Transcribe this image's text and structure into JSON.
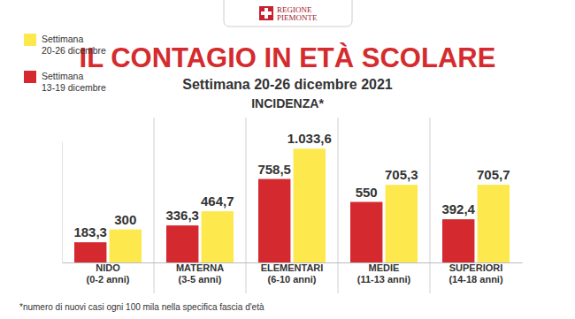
{
  "chart_data": {
    "type": "bar",
    "title": "IL CONTAGIO IN ETÀ SCOLARE",
    "subtitle": "Settimana 20-26 dicembre 2021",
    "annotations": [
      "REGIONE\nPIEMONTE",
      "INCIDENZA*",
      "*numero di nuovi casi ogni 100 mila nella specifica fascia d'età"
    ],
    "categories": [
      "NIDO\n(0-2 anni)",
      "MATERNA\n(3-5 anni)",
      "ELEMENTARI\n(6-10 anni)",
      "MEDIE\n(11-13 anni)",
      "SUPERIORI\n(14-18 anni)"
    ],
    "series": [
      {
        "name": "Settimana\n13-19 dicembre",
        "color": "#d42a2f",
        "values": [
          183.3,
          336.3,
          758.5,
          550,
          392.4
        ],
        "value_labels": [
          "183,3",
          "336,3",
          "758,5",
          "550",
          "392,4"
        ]
      },
      {
        "name": "Settimana\n20-26 dicembre",
        "color": "#fde84e",
        "values": [
          300,
          464.7,
          1033.6,
          705.3,
          705.7
        ],
        "value_labels": [
          "300",
          "464,7",
          "1.033,6",
          "705,3",
          "705,7"
        ]
      }
    ],
    "ylim": [
      0,
      1100
    ],
    "yticks": [],
    "tick_labels": false,
    "data_labels": true,
    "legend": "top-left",
    "grid": false
  }
}
